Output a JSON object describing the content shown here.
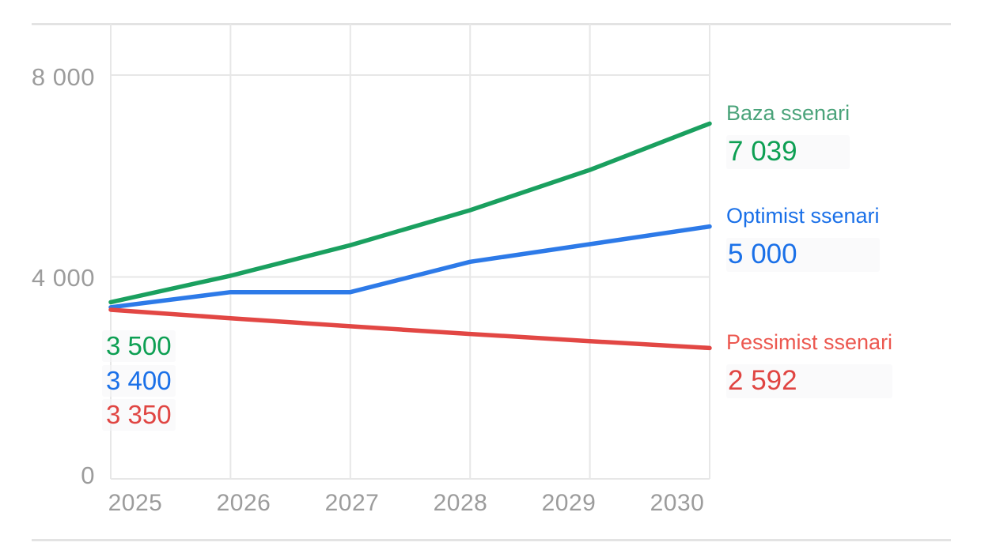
{
  "chart_data": {
    "type": "line",
    "title": "",
    "xlabel": "",
    "ylabel": "",
    "x": [
      2025,
      2026,
      2027,
      2028,
      2029,
      2030
    ],
    "xtick_labels": [
      "2025",
      "2026",
      "2027",
      "2028",
      "2029",
      "2030"
    ],
    "ytick_labels": [
      "8 000",
      "4 000",
      "0"
    ],
    "ytick_values": [
      8000,
      4000,
      0
    ],
    "ylim": [
      0,
      9050
    ],
    "grid": true,
    "legend_position": "right",
    "axis_color": "#9c9c9c",
    "grid_color": "#e7e7e7",
    "border_color": "#e3e3e3",
    "series": [
      {
        "name": "Baza ssenari",
        "values": [
          3500,
          4025,
          4629,
          5323,
          6122,
          7039
        ],
        "start_label": "3 500",
        "end_label": "7 039",
        "line_color": "#1aa05f",
        "name_color": "#4aa37a",
        "value_color": "#0d9f53"
      },
      {
        "name": "Optimist ssenari",
        "values": [
          3400,
          3700,
          3700,
          4300,
          4650,
          5000
        ],
        "start_label": "3 400",
        "end_label": "5 000",
        "line_color": "#2d7ae8",
        "name_color": "#1a70e8",
        "value_color": "#1a70e8"
      },
      {
        "name": "Pessimist ssenari",
        "values": [
          3350,
          3183,
          3023,
          2872,
          2728,
          2592
        ],
        "start_label": "3 350",
        "end_label": "2 592",
        "line_color": "#e24744",
        "name_color": "#ec5850",
        "value_color": "#e04542"
      }
    ]
  }
}
